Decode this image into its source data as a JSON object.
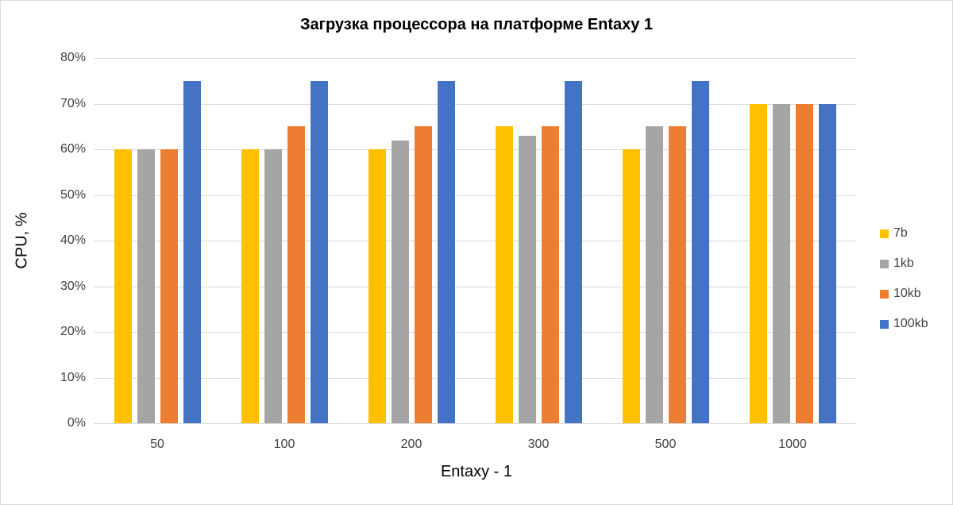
{
  "chart_data": {
    "type": "bar",
    "title": "Загрузка процессора на платформе Entaxy 1",
    "xlabel": "Entaxy - 1",
    "ylabel": "CPU, %",
    "ylim": [
      0,
      80
    ],
    "yticks": [
      "0%",
      "10%",
      "20%",
      "30%",
      "40%",
      "50%",
      "60%",
      "70%",
      "80%"
    ],
    "grid": true,
    "legend_position": "right",
    "categories": [
      "50",
      "100",
      "200",
      "300",
      "500",
      "1000"
    ],
    "series": [
      {
        "name": "7b",
        "color": "#FFC000",
        "values": [
          60,
          60,
          60,
          65,
          60,
          70
        ]
      },
      {
        "name": "1kb",
        "color": "#A5A5A5",
        "values": [
          60,
          60,
          62,
          63,
          65,
          70
        ]
      },
      {
        "name": "10kb",
        "color": "#ED7D31",
        "values": [
          60,
          65,
          65,
          65,
          65,
          70
        ]
      },
      {
        "name": "100kb",
        "color": "#4472C4",
        "values": [
          75,
          75,
          75,
          75,
          75,
          70
        ]
      }
    ]
  }
}
